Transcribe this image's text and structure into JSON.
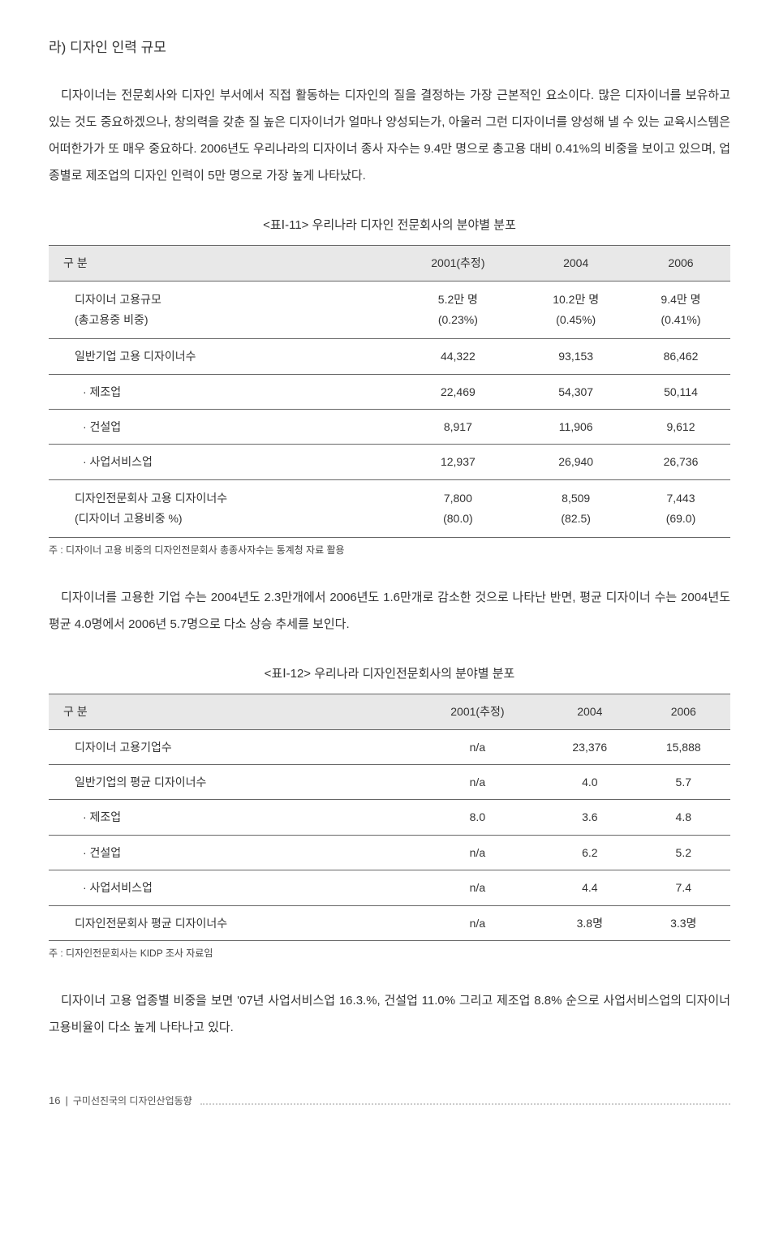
{
  "section_title": "라) 디자인 인력 규모",
  "para1": "디자이너는 전문회사와 디자인 부서에서 직접 활동하는 디자인의 질을 결정하는 가장 근본적인 요소이다. 많은 디자이너를 보유하고 있는 것도 중요하겠으나, 창의력을 갖춘 질 높은 디자이너가 얼마나 양성되는가, 아울러 그런 디자이너를 양성해 낼 수 있는 교육시스템은 어떠한가가 또 매우 중요하다. 2006년도 우리나라의 디자이너 종사 자수는 9.4만 명으로 총고용 대비 0.41%의 비중을 보이고 있으며, 업종별로 제조업의 디자인 인력이 5만 명으로 가장 높게 나타났다.",
  "table1": {
    "caption": "<표Ⅰ-11> 우리나라 디자인 전문회사의 분야별 분포",
    "headers": [
      "구 분",
      "2001(추정)",
      "2004",
      "2006"
    ],
    "rows": [
      {
        "cells": [
          "디자이너 고용규모\n(총고용중 비중)",
          "5.2만 명\n(0.23%)",
          "10.2만 명\n(0.45%)",
          "9.4만 명\n(0.41%)"
        ],
        "indent": 1,
        "twoline": true
      },
      {
        "cells": [
          "일반기업 고용 디자이너수",
          "44,322",
          "93,153",
          "86,462"
        ],
        "indent": 1
      },
      {
        "cells": [
          "· 제조업",
          "22,469",
          "54,307",
          "50,114"
        ],
        "indent": 2
      },
      {
        "cells": [
          "· 건설업",
          "8,917",
          "11,906",
          "9,612"
        ],
        "indent": 2
      },
      {
        "cells": [
          "· 사업서비스업",
          "12,937",
          "26,940",
          "26,736"
        ],
        "indent": 2
      },
      {
        "cells": [
          "디자인전문회사 고용 디자이너수\n(디자이너 고용비중 %)",
          "7,800\n(80.0)",
          "8,509\n(82.5)",
          "7,443\n(69.0)"
        ],
        "indent": 1,
        "twoline": true
      }
    ],
    "note": "주 : 디자이너 고용 비중의 디자인전문회사 총종사자수는 통계청 자료 활용"
  },
  "para2": "디자이너를 고용한 기업 수는 2004년도 2.3만개에서 2006년도 1.6만개로 감소한 것으로 나타난 반면, 평균 디자이너 수는 2004년도 평균 4.0명에서 2006년 5.7명으로 다소 상승 추세를 보인다.",
  "table2": {
    "caption": "<표Ⅰ-12> 우리나라 디자인전문회사의 분야별 분포",
    "headers": [
      "구 분",
      "2001(추정)",
      "2004",
      "2006"
    ],
    "rows": [
      {
        "cells": [
          "디자이너 고용기업수",
          "n/a",
          "23,376",
          "15,888"
        ],
        "indent": 1
      },
      {
        "cells": [
          "일반기업의 평균 디자이너수",
          "n/a",
          "4.0",
          "5.7"
        ],
        "indent": 1
      },
      {
        "cells": [
          "· 제조업",
          "8.0",
          "3.6",
          "4.8"
        ],
        "indent": 2
      },
      {
        "cells": [
          "· 건설업",
          "n/a",
          "6.2",
          "5.2"
        ],
        "indent": 2
      },
      {
        "cells": [
          "· 사업서비스업",
          "n/a",
          "4.4",
          "7.4"
        ],
        "indent": 2
      },
      {
        "cells": [
          "디자인전문회사 평균 디자이너수",
          "n/a",
          "3.8명",
          "3.3명"
        ],
        "indent": 1
      }
    ],
    "note": "주 : 디자인전문회사는 KIDP 조사 자료임"
  },
  "para3": "디자이너 고용 업종별 비중을 보면 '07년 사업서비스업 16.3.%, 건설업 11.0% 그리고 제조업 8.8% 순으로 사업서비스업의 디자이너 고용비율이 다소 높게 나타나고 있다.",
  "footer": {
    "page_num": "16",
    "title": "구미선진국의 디자인산업동향"
  },
  "colors": {
    "text": "#333333",
    "header_bg": "#e8e8e8",
    "border": "#666666",
    "note": "#444444",
    "dots": "#cccccc"
  }
}
